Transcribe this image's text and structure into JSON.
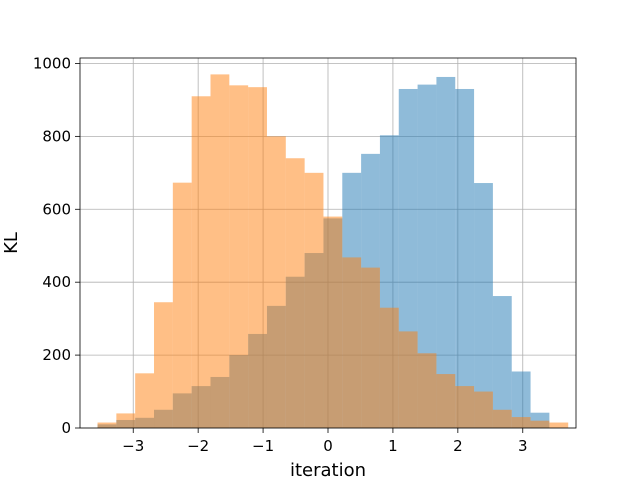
{
  "chart_data": {
    "type": "histogram",
    "title": "",
    "xlabel": "iteration",
    "ylabel": "KL",
    "xlim": [
      -3.82,
      3.82
    ],
    "ylim": [
      0,
      1015
    ],
    "xticks": [
      -3,
      -2,
      -1,
      0,
      1,
      2,
      3
    ],
    "xtick_labels": [
      "−3",
      "−2",
      "−1",
      "0",
      "1",
      "2",
      "3"
    ],
    "yticks": [
      0,
      200,
      400,
      600,
      800,
      1000
    ],
    "ytick_labels": [
      "0",
      "200",
      "400",
      "600",
      "800",
      "1000"
    ],
    "grid": true,
    "legend": "none",
    "series": [
      {
        "color": "#1f77b4",
        "opacity": 0.5,
        "bin_edges": [
          -3.55,
          -3.26,
          -2.97,
          -2.68,
          -2.39,
          -2.1,
          -1.81,
          -1.52,
          -1.23,
          -0.94,
          -0.65,
          -0.36,
          -0.07,
          0.22,
          0.51,
          0.8,
          1.09,
          1.38,
          1.67,
          1.96,
          2.25,
          2.54,
          2.83,
          3.12,
          3.41
        ],
        "counts": [
          10,
          22,
          28,
          50,
          95,
          115,
          140,
          200,
          258,
          335,
          415,
          480,
          575,
          700,
          752,
          803,
          930,
          942,
          963,
          930,
          672,
          362,
          155,
          42
        ]
      },
      {
        "color": "#ff7f0e",
        "opacity": 0.5,
        "bin_edges": [
          -3.55,
          -3.26,
          -2.97,
          -2.68,
          -2.39,
          -2.1,
          -1.81,
          -1.52,
          -1.23,
          -0.94,
          -0.65,
          -0.36,
          -0.07,
          0.22,
          0.51,
          0.8,
          1.09,
          1.38,
          1.67,
          1.96,
          2.25,
          2.54,
          2.83,
          3.12,
          3.41,
          3.7
        ],
        "counts": [
          15,
          40,
          150,
          345,
          673,
          910,
          970,
          940,
          935,
          800,
          740,
          700,
          580,
          468,
          440,
          330,
          265,
          205,
          148,
          115,
          100,
          50,
          30,
          20,
          15
        ]
      }
    ]
  }
}
